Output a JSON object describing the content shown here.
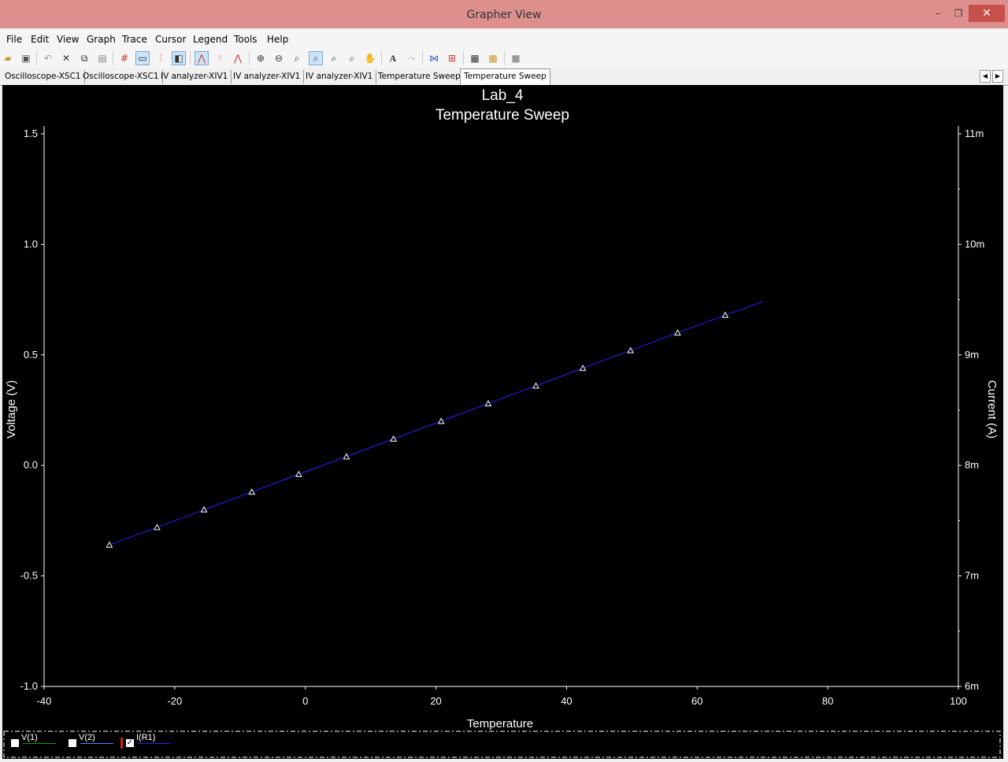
{
  "window": {
    "title": "Grapher View",
    "minimize": "–",
    "restore": "❐",
    "close": "✕"
  },
  "menu": [
    "File",
    "Edit",
    "View",
    "Graph",
    "Trace",
    "Cursor",
    "Legend",
    "Tools",
    "Help"
  ],
  "toolbar_icons": [
    "open-icon",
    "save-icon",
    "undo-icon",
    "cut-icon",
    "copy-icon",
    "paste-icon",
    "grid-icon",
    "legend-toggle-icon",
    "toggle-markers-icon",
    "overlay-icon",
    "line-trace-icon",
    "dots-trace-icon",
    "line-dots-trace-icon",
    "zoom-in-icon",
    "zoom-out-icon",
    "zoom-area-icon",
    "zoom-full-icon",
    "zoom-x-icon",
    "zoom-y-icon",
    "pan-icon",
    "text-icon",
    "export-icon",
    "data-icon",
    "properties-icon",
    "print-preview-icon",
    "print-icon",
    "stop-icon"
  ],
  "tabs": [
    "Oscilloscope-XSC1",
    "Oscilloscope-XSC1",
    "IV analyzer-XIV1",
    "IV analyzer-XIV1",
    "IV analyzer-XIV1",
    "Temperature Sweep",
    "Temperature Sweep"
  ],
  "active_tab": 6,
  "legend": [
    {
      "name": "V(1)",
      "color": "#00a000",
      "checked": false
    },
    {
      "name": "V(2)",
      "color": "#4488ff",
      "checked": false
    },
    {
      "name": "I(R1)",
      "color": "#2222ff",
      "checked": true
    }
  ],
  "chart_data": {
    "type": "line",
    "title": "Lab_4",
    "subtitle": "Temperature Sweep",
    "xlabel": "Temperature",
    "ylabel": "Voltage (V)",
    "y2label": "Current (A)",
    "xlim": [
      -40,
      100
    ],
    "ylim": [
      -1.0,
      1.5
    ],
    "y2lim": [
      0.006,
      0.011
    ],
    "xticks": [
      "-40",
      "-20",
      "0",
      "20",
      "40",
      "60",
      "80",
      "100"
    ],
    "yticks": [
      "1.5",
      "1.0",
      "0.5",
      "0.0",
      "-0.5",
      "-1.0"
    ],
    "y2ticks": [
      "11m",
      "10m",
      "9m",
      "8m",
      "7m",
      "6m"
    ],
    "series": [
      {
        "name": "I(R1)",
        "color": "#2222ff",
        "axis": "right",
        "x": [
          -30,
          -22.7,
          -15.5,
          -8.2,
          -1,
          6.3,
          13.5,
          20.8,
          28,
          35.3,
          42.5,
          49.8,
          57,
          64.3,
          70
        ],
        "y": [
          0.00728,
          0.00744,
          0.0076,
          0.00776,
          0.00792,
          0.00808,
          0.00824,
          0.0084,
          0.00856,
          0.00872,
          0.00888,
          0.00904,
          0.0092,
          0.00936,
          0.00948
        ],
        "markers": "triangle"
      }
    ],
    "grid": false,
    "legend_position": "bottom"
  }
}
